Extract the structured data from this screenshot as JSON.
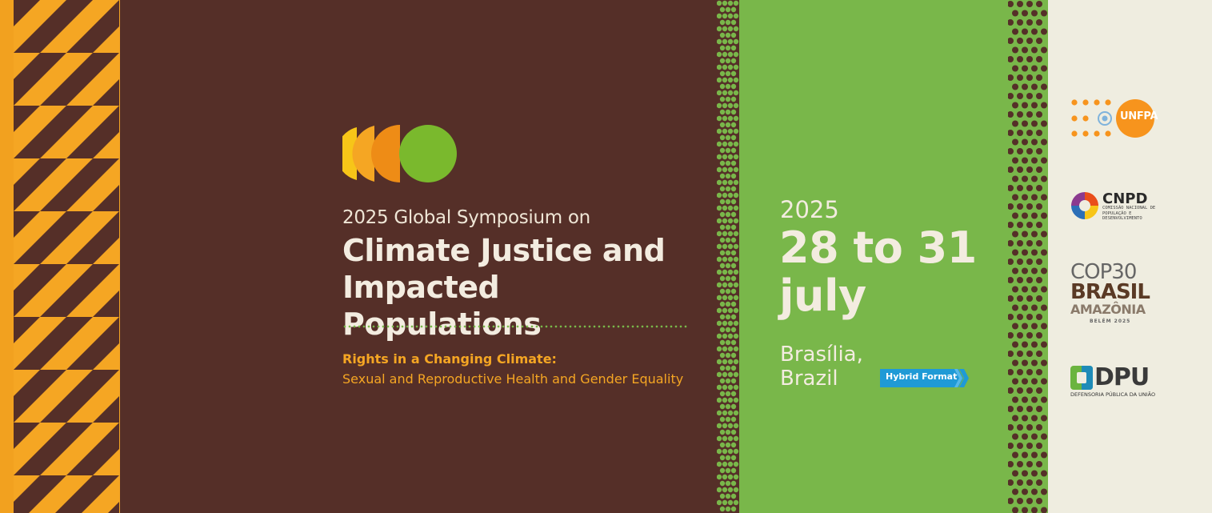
{
  "event": {
    "subtitle": "2025 Global Symposium on",
    "title_line1": "Climate Justice and",
    "title_line2": "Impacted Populations",
    "tagline_line1": "Rights in a Changing Climate:",
    "tagline_line2": "Sexual and Reproductive Health and Gender Equality"
  },
  "schedule": {
    "year": "2025",
    "dates_line1": "28 to 31",
    "dates_line2": "july",
    "city_line1": "Brasília,",
    "city_line2": "Brazil",
    "format_badge": "Hybrid Format"
  },
  "logos": {
    "unfpa": "UNFPA",
    "cnpd": "CNPD",
    "cnpd_subtitle": "COMISSÃO NACIONAL DE POPULAÇÃO E DESENVOLVIMENTO",
    "cop": "COP30",
    "brasil": "BRASIL",
    "amazonia": "AMAZÔNIA",
    "belem": "BELÉM 2025",
    "dpu": "DPU",
    "dpu_subtitle": "DEFENSORIA PÚBLICA DA UNIÃO"
  },
  "colors": {
    "brown": "#552f28",
    "green": "#79b74a",
    "orange": "#f5a623",
    "cream": "#efede0",
    "badge_blue": "#1f9ad6"
  }
}
